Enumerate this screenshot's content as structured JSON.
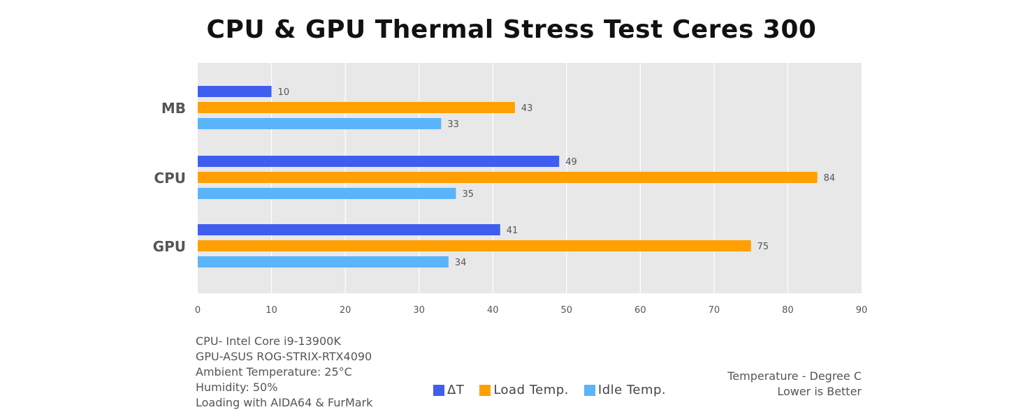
{
  "chart_data": {
    "type": "bar",
    "orientation": "horizontal",
    "title": "CPU & GPU Thermal Stress Test Ceres 300",
    "categories": [
      "MB",
      "CPU",
      "GPU"
    ],
    "series": [
      {
        "name": "ΔT",
        "color": "#3f5ef0",
        "values": [
          10,
          49,
          41
        ]
      },
      {
        "name": "Load Temp.",
        "color": "#ffa000",
        "values": [
          43,
          84,
          75
        ]
      },
      {
        "name": "Idle Temp.",
        "color": "#5ab4fa",
        "values": [
          33,
          35,
          34
        ]
      }
    ],
    "xlim": [
      0,
      90
    ],
    "xticks": [
      0,
      10,
      20,
      30,
      40,
      50,
      60,
      70,
      80,
      90
    ],
    "grid": true,
    "legend_position": "bottom-center"
  },
  "notes": {
    "lines": [
      "CPU- Intel Core i9-13900K",
      "GPU-ASUS ROG-STRIX-RTX4090",
      "Ambient Temperature: 25°C",
      "Humidity: 50%",
      "Loading with AIDA64  & FurMark"
    ]
  },
  "side_note": {
    "unit": "Temperature - Degree C",
    "direction": "Lower is Better"
  },
  "colors": {
    "plot_background": "#e8e8e8",
    "grid": "#ffffff"
  }
}
